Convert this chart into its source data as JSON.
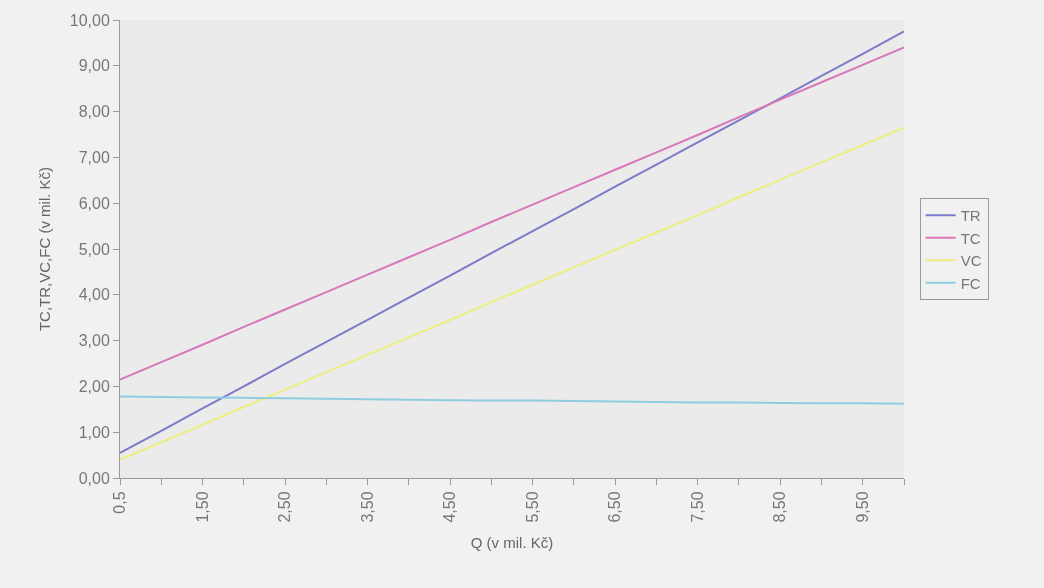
{
  "chart_data": {
    "type": "line",
    "xlabel": "Q (v mil. Kč)",
    "ylabel": "TC,TR,VC,FC (v mil. Kč)",
    "categories": [
      "0,5",
      null,
      "1,50",
      null,
      "2,50",
      null,
      "3,50",
      null,
      "4,50",
      null,
      "5,50",
      null,
      "6,50",
      null,
      "7,50",
      null,
      "8,50",
      null,
      "9,50",
      null
    ],
    "series": [
      {
        "name": "TR",
        "color": "#7b7bc8",
        "values": [
          0.55,
          1.03,
          1.52,
          2.0,
          2.49,
          2.97,
          3.45,
          3.94,
          4.42,
          4.91,
          5.39,
          5.87,
          6.36,
          6.84,
          7.33,
          7.81,
          8.29,
          8.78,
          9.26,
          9.75
        ]
      },
      {
        "name": "TC",
        "color": "#d878b8",
        "values": [
          2.15,
          2.53,
          2.91,
          3.3,
          3.68,
          4.06,
          4.44,
          4.82,
          5.2,
          5.59,
          5.97,
          6.35,
          6.73,
          7.11,
          7.49,
          7.88,
          8.26,
          8.64,
          9.02,
          9.4
        ]
      },
      {
        "name": "VC",
        "color": "#eeee80",
        "values": [
          0.4,
          0.78,
          1.16,
          1.55,
          1.93,
          2.31,
          2.69,
          3.07,
          3.45,
          3.84,
          4.22,
          4.6,
          4.98,
          5.36,
          5.74,
          6.13,
          6.51,
          6.89,
          7.27,
          7.65
        ]
      },
      {
        "name": "FC",
        "color": "#90cce0",
        "values": [
          1.78,
          1.77,
          1.76,
          1.75,
          1.74,
          1.73,
          1.72,
          1.71,
          1.7,
          1.69,
          1.69,
          1.68,
          1.67,
          1.66,
          1.65,
          1.65,
          1.64,
          1.63,
          1.63,
          1.62
        ]
      }
    ],
    "ylim": [
      0,
      10
    ],
    "yticks": [
      {
        "value": 0,
        "label": "0,00"
      },
      {
        "value": 1,
        "label": "1,00"
      },
      {
        "value": 2,
        "label": "2,00"
      },
      {
        "value": 3,
        "label": "3,00"
      },
      {
        "value": 4,
        "label": "4,00"
      },
      {
        "value": 5,
        "label": "5,00"
      },
      {
        "value": 6,
        "label": "6,00"
      },
      {
        "value": 7,
        "label": "7,00"
      },
      {
        "value": 8,
        "label": "8,00"
      },
      {
        "value": 9,
        "label": "9,00"
      },
      {
        "value": 10,
        "label": "10,00"
      }
    ],
    "grid": false,
    "legend": "right",
    "marker": "none",
    "line_style": "solid"
  }
}
